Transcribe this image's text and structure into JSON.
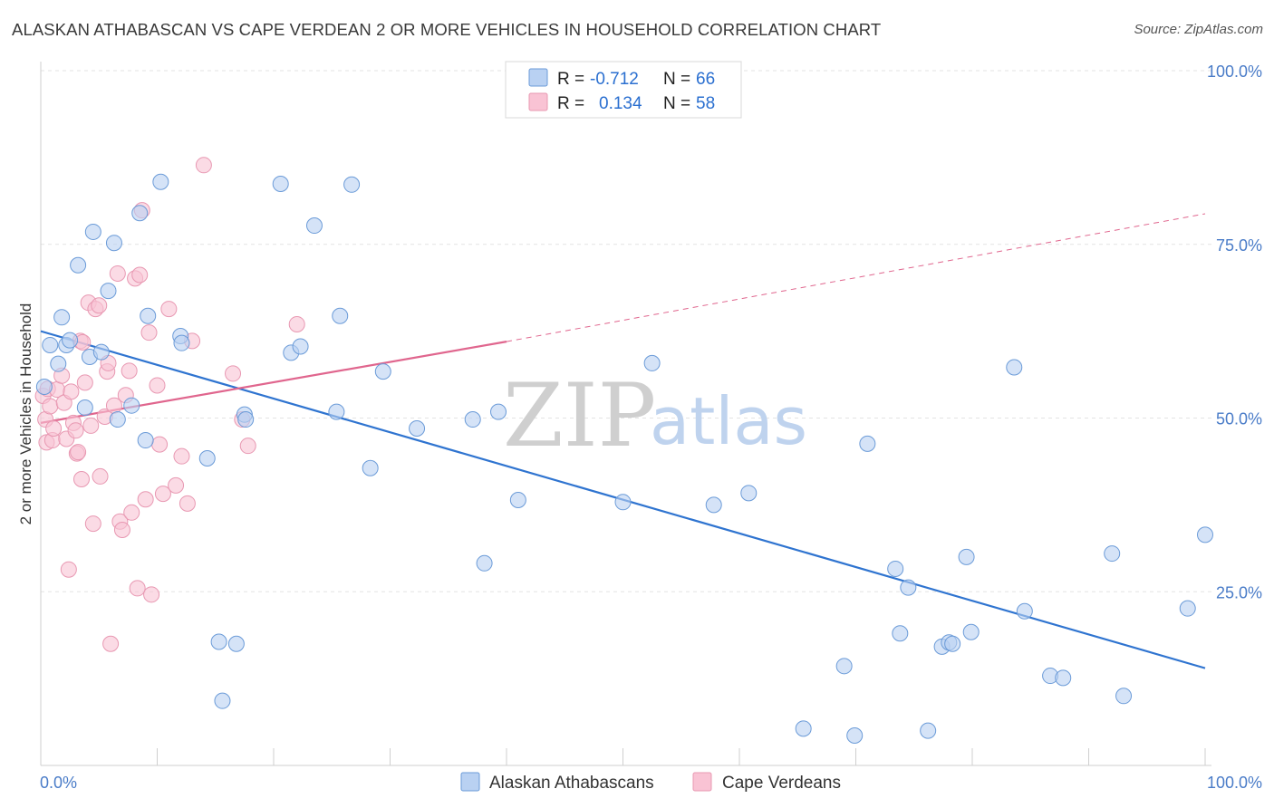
{
  "title": "ALASKAN ATHABASCAN VS CAPE VERDEAN 2 OR MORE VEHICLES IN HOUSEHOLD CORRELATION CHART",
  "source": "Source: ZipAtlas.com",
  "watermark": {
    "zip": "ZIP",
    "atlas": "atlas"
  },
  "colors": {
    "blue_fill": "#b9d1f2",
    "blue_stroke": "#6b9bd8",
    "blue_line": "#2f74d0",
    "pink_fill": "#f9c3d4",
    "pink_stroke": "#e898b2",
    "pink_line": "#e0668e",
    "tick_text": "#4a7cc8",
    "grid": "#e3e3e3"
  },
  "legend_top": [
    {
      "r_label": "R =",
      "r_value": "-0.712",
      "n_label": "N =",
      "n_value": "66"
    },
    {
      "r_label": "R =",
      "r_value": "0.134",
      "n_label": "N =",
      "n_value": "58"
    }
  ],
  "chart_data": {
    "type": "scatter",
    "title": "ALASKAN ATHABASCAN VS CAPE VERDEAN 2 OR MORE VEHICLES IN HOUSEHOLD CORRELATION CHART",
    "xlabel": "",
    "ylabel": "2 or more Vehicles in Household",
    "xlim": [
      0,
      100
    ],
    "ylim": [
      0,
      100
    ],
    "x_tick_labels": [
      "0.0%",
      "100.0%"
    ],
    "y_tick_labels": [
      "100.0%",
      "75.0%",
      "50.0%",
      "25.0%"
    ],
    "y_tick_values": [
      100,
      75,
      50,
      25
    ],
    "grid": true,
    "legend_position": "top-center",
    "series": [
      {
        "name": "Alaskan Athabascans",
        "trend": {
          "x": [
            0,
            100
          ],
          "y": [
            62.5,
            14.0
          ],
          "dashed_after": null
        },
        "points": [
          [
            0.3,
            54.5
          ],
          [
            0.8,
            60.5
          ],
          [
            1.5,
            57.8
          ],
          [
            1.8,
            64.5
          ],
          [
            2.2,
            60.5
          ],
          [
            2.5,
            61.2
          ],
          [
            3.2,
            72.0
          ],
          [
            3.8,
            51.5
          ],
          [
            4.2,
            58.8
          ],
          [
            4.5,
            76.8
          ],
          [
            5.2,
            59.5
          ],
          [
            5.8,
            68.3
          ],
          [
            6.3,
            75.2
          ],
          [
            6.6,
            49.8
          ],
          [
            7.8,
            51.8
          ],
          [
            8.5,
            79.5
          ],
          [
            9.0,
            46.8
          ],
          [
            9.2,
            64.7
          ],
          [
            10.3,
            84.0
          ],
          [
            12.0,
            61.8
          ],
          [
            12.1,
            60.8
          ],
          [
            14.3,
            44.2
          ],
          [
            15.3,
            17.8
          ],
          [
            15.6,
            9.3
          ],
          [
            16.8,
            17.5
          ],
          [
            17.5,
            50.5
          ],
          [
            17.6,
            49.8
          ],
          [
            20.6,
            83.7
          ],
          [
            21.5,
            59.4
          ],
          [
            22.3,
            60.3
          ],
          [
            23.5,
            77.7
          ],
          [
            25.4,
            50.9
          ],
          [
            25.7,
            64.7
          ],
          [
            26.7,
            83.6
          ],
          [
            28.3,
            42.8
          ],
          [
            29.4,
            56.7
          ],
          [
            32.3,
            48.5
          ],
          [
            37.1,
            49.8
          ],
          [
            38.1,
            29.1
          ],
          [
            39.3,
            50.9
          ],
          [
            41.0,
            38.2
          ],
          [
            50.0,
            37.9
          ],
          [
            52.5,
            57.9
          ],
          [
            57.8,
            37.5
          ],
          [
            60.8,
            39.2
          ],
          [
            65.5,
            5.3
          ],
          [
            69.0,
            14.3
          ],
          [
            69.9,
            4.3
          ],
          [
            71.0,
            46.3
          ],
          [
            73.4,
            28.3
          ],
          [
            73.8,
            19.0
          ],
          [
            74.5,
            25.6
          ],
          [
            76.2,
            5.0
          ],
          [
            77.4,
            17.1
          ],
          [
            78.0,
            17.7
          ],
          [
            78.3,
            17.5
          ],
          [
            79.5,
            30.0
          ],
          [
            79.9,
            19.2
          ],
          [
            83.6,
            57.3
          ],
          [
            84.5,
            22.2
          ],
          [
            86.7,
            12.9
          ],
          [
            87.8,
            12.6
          ],
          [
            92.0,
            30.5
          ],
          [
            93.0,
            10.0
          ],
          [
            98.5,
            22.6
          ],
          [
            100.0,
            33.2
          ]
        ]
      },
      {
        "name": "Cape Verdeans",
        "trend": {
          "x": [
            0,
            40
          ],
          "y": [
            49.3,
            61.0
          ],
          "dashed_to": {
            "x": 100,
            "y": 79.4
          }
        },
        "points": [
          [
            0.2,
            53.2
          ],
          [
            0.4,
            49.8
          ],
          [
            0.5,
            46.5
          ],
          [
            0.6,
            54.2
          ],
          [
            0.8,
            51.7
          ],
          [
            1.0,
            46.8
          ],
          [
            1.1,
            48.5
          ],
          [
            1.4,
            54.1
          ],
          [
            1.8,
            56.1
          ],
          [
            2.0,
            52.2
          ],
          [
            2.2,
            47.0
          ],
          [
            2.4,
            28.2
          ],
          [
            2.6,
            53.8
          ],
          [
            2.8,
            49.3
          ],
          [
            3.0,
            48.2
          ],
          [
            3.1,
            44.9
          ],
          [
            3.2,
            45.1
          ],
          [
            3.4,
            61.1
          ],
          [
            3.5,
            41.2
          ],
          [
            3.6,
            60.9
          ],
          [
            3.8,
            55.1
          ],
          [
            4.1,
            66.6
          ],
          [
            4.3,
            48.9
          ],
          [
            4.5,
            34.8
          ],
          [
            4.7,
            65.7
          ],
          [
            5.0,
            66.2
          ],
          [
            5.1,
            41.6
          ],
          [
            5.5,
            50.2
          ],
          [
            5.7,
            56.7
          ],
          [
            5.8,
            57.9
          ],
          [
            6.0,
            17.5
          ],
          [
            6.3,
            51.8
          ],
          [
            6.6,
            70.8
          ],
          [
            6.8,
            35.1
          ],
          [
            7.0,
            33.9
          ],
          [
            7.3,
            53.3
          ],
          [
            7.6,
            56.8
          ],
          [
            7.8,
            36.4
          ],
          [
            8.1,
            70.1
          ],
          [
            8.3,
            25.5
          ],
          [
            8.5,
            70.6
          ],
          [
            8.7,
            79.9
          ],
          [
            9.0,
            38.3
          ],
          [
            9.3,
            62.3
          ],
          [
            9.5,
            24.6
          ],
          [
            10.0,
            54.7
          ],
          [
            10.2,
            46.2
          ],
          [
            10.5,
            39.1
          ],
          [
            11.0,
            65.7
          ],
          [
            11.6,
            40.3
          ],
          [
            12.1,
            44.5
          ],
          [
            12.6,
            37.7
          ],
          [
            13.0,
            61.1
          ],
          [
            14.0,
            86.4
          ],
          [
            16.5,
            56.4
          ],
          [
            17.3,
            49.8
          ],
          [
            17.8,
            46.0
          ],
          [
            22.0,
            63.5
          ]
        ]
      }
    ]
  },
  "bottom_legend": {
    "items": [
      {
        "label": "Alaskan Athabascans"
      },
      {
        "label": "Cape Verdeans"
      }
    ]
  }
}
